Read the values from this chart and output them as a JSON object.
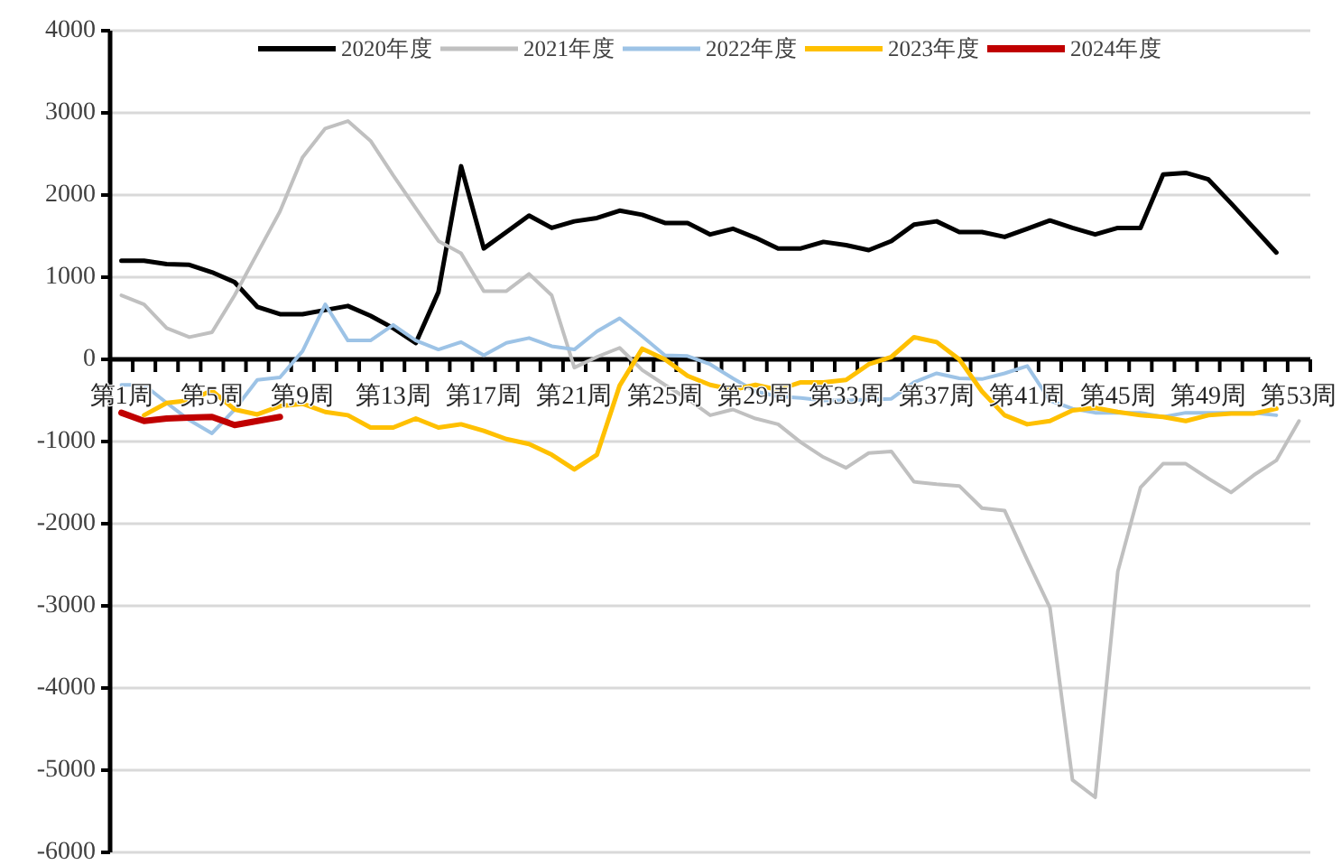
{
  "chart_data": {
    "type": "line",
    "categories": [
      "第1周",
      null,
      null,
      null,
      "第5周",
      null,
      null,
      null,
      "第9周",
      null,
      null,
      null,
      "第13周",
      null,
      null,
      null,
      "第17周",
      null,
      null,
      null,
      "第21周",
      null,
      null,
      null,
      "第25周",
      null,
      null,
      null,
      "第29周",
      null,
      null,
      null,
      "第33周",
      null,
      null,
      null,
      "第37周",
      null,
      null,
      null,
      "第41周",
      null,
      null,
      null,
      "第45周",
      null,
      null,
      null,
      "第49周",
      null,
      null,
      null,
      "第53周"
    ],
    "series": [
      {
        "name": "2020年度",
        "color": "#000000",
        "values": [
          1200,
          1200,
          1160,
          1150,
          1060,
          940,
          640,
          550,
          550,
          600,
          650,
          530,
          380,
          200,
          820,
          2350,
          1350,
          1550,
          1750,
          1600,
          1680,
          1720,
          1810,
          1760,
          1660,
          1660,
          1520,
          1590,
          1480,
          1350,
          1350,
          1430,
          1390,
          1330,
          1440,
          1640,
          1680,
          1550,
          1550,
          1490,
          1590,
          1690,
          1600,
          1520,
          1600,
          1600,
          2250,
          2270,
          2190,
          1900,
          1600,
          1300,
          null
        ]
      },
      {
        "name": "2021年度",
        "color": "#c0c0c0",
        "values": [
          780,
          670,
          380,
          270,
          330,
          780,
          1290,
          1800,
          2460,
          2810,
          2900,
          2660,
          2240,
          1840,
          1440,
          1290,
          830,
          830,
          1040,
          780,
          -100,
          30,
          140,
          -130,
          -310,
          -480,
          -680,
          -610,
          -720,
          -790,
          -1010,
          -1190,
          -1320,
          -1140,
          -1120,
          -1490,
          -1520,
          -1540,
          -1810,
          -1840,
          -2440,
          -3020,
          -5120,
          -5330,
          -2580,
          -1560,
          -1270,
          -1270,
          -1450,
          -1620,
          -1410,
          -1230,
          -750
        ]
      },
      {
        "name": "2022年度",
        "color": "#9dc3e6",
        "values": [
          -310,
          -310,
          -530,
          -740,
          -900,
          -610,
          -250,
          -220,
          100,
          670,
          230,
          230,
          420,
          230,
          120,
          210,
          50,
          200,
          260,
          160,
          120,
          340,
          500,
          280,
          50,
          40,
          -60,
          -230,
          -390,
          -450,
          -470,
          -500,
          -500,
          -490,
          -480,
          -280,
          -170,
          -230,
          -240,
          -170,
          -80,
          -500,
          -600,
          -650,
          -650,
          -650,
          -700,
          -650,
          -650,
          -650,
          -650,
          -680,
          null
        ]
      },
      {
        "name": "2023年度",
        "color": "#ffc000",
        "values": [
          null,
          -680,
          -530,
          -500,
          -380,
          -610,
          -670,
          -570,
          -540,
          -640,
          -680,
          -830,
          -830,
          -720,
          -830,
          -790,
          -870,
          -970,
          -1030,
          -1160,
          -1340,
          -1160,
          -320,
          130,
          0,
          -200,
          -310,
          -370,
          -310,
          -370,
          -280,
          -280,
          -250,
          -60,
          30,
          270,
          210,
          0,
          -390,
          -680,
          -790,
          -750,
          -620,
          -590,
          -640,
          -680,
          -700,
          -750,
          -680,
          -660,
          -660,
          -600,
          null
        ]
      },
      {
        "name": "2024年度",
        "color": "#c00000",
        "values": [
          -650,
          -750,
          -720,
          -710,
          -700,
          -800,
          -750,
          -700,
          null,
          null,
          null,
          null,
          null,
          null,
          null,
          null,
          null,
          null,
          null,
          null,
          null,
          null,
          null,
          null,
          null,
          null,
          null,
          null,
          null,
          null,
          null,
          null,
          null,
          null,
          null,
          null,
          null,
          null,
          null,
          null,
          null,
          null,
          null,
          null,
          null,
          null,
          null,
          null,
          null,
          null,
          null,
          null,
          null
        ]
      }
    ],
    "ylim": [
      -6000,
      4000
    ],
    "yticks": [
      -6000,
      -5000,
      -4000,
      -3000,
      -2000,
      -1000,
      0,
      1000,
      2000,
      3000,
      4000
    ],
    "grid": "y",
    "legend": "top"
  }
}
